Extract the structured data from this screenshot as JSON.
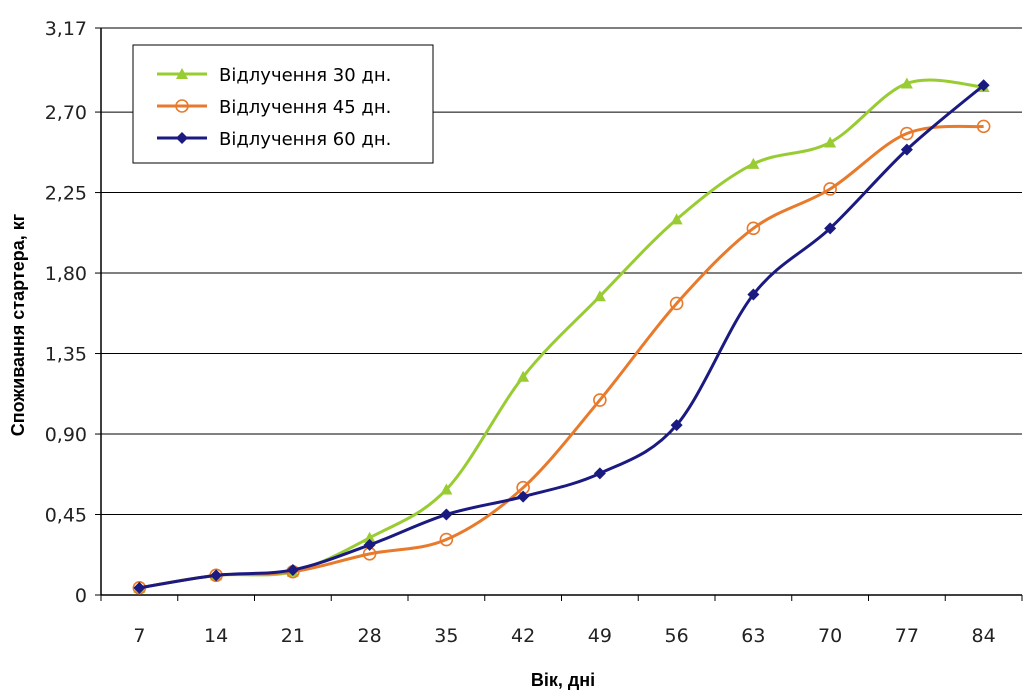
{
  "chart_data": {
    "type": "line",
    "title": "",
    "xlabel": "Вік, дні",
    "ylabel": "Споживання стартера, кг",
    "x": [
      7,
      14,
      21,
      28,
      35,
      42,
      49,
      56,
      63,
      70,
      77,
      84
    ],
    "x_tick_labels": [
      "7",
      "14",
      "21",
      "28",
      "35",
      "42",
      "49",
      "56",
      "63",
      "70",
      "77",
      "84"
    ],
    "y_ticks": [
      0,
      0.45,
      0.9,
      1.35,
      1.8,
      2.25,
      2.7,
      3.17
    ],
    "y_tick_labels": [
      "0",
      "0,45",
      "0,90",
      "1,35",
      "1,80",
      "2,25",
      "2,70",
      "3,17"
    ],
    "ylim": [
      0,
      3.17
    ],
    "grid": "horizontal",
    "legend_position": "top-left",
    "series": [
      {
        "name": "Відлучення 30 дн.",
        "color": "#99cc33",
        "marker": "triangle",
        "values": [
          0.04,
          0.11,
          0.13,
          0.32,
          0.59,
          1.22,
          1.67,
          2.1,
          2.41,
          2.53,
          2.86,
          2.84
        ]
      },
      {
        "name": "Відлучення 45 дн.",
        "color": "#e87a2c",
        "marker": "circle",
        "values": [
          0.04,
          0.11,
          0.13,
          0.23,
          0.31,
          0.6,
          1.09,
          1.63,
          2.05,
          2.27,
          2.58,
          2.62
        ]
      },
      {
        "name": "Відлучення 60 дн.",
        "color": "#1a1a80",
        "marker": "diamond",
        "values": [
          0.04,
          0.11,
          0.14,
          0.28,
          0.45,
          0.55,
          0.68,
          0.95,
          1.68,
          2.05,
          2.49,
          2.85
        ]
      }
    ]
  }
}
